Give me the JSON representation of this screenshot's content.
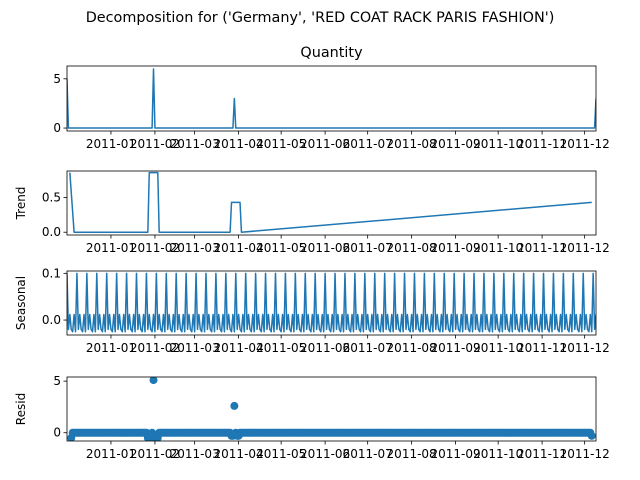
{
  "figure_title": "Decomposition for ('Germany', 'RED COAT RACK PARIS FASHION')",
  "line_color": "#1f77b4",
  "chart_data": [
    {
      "type": "line",
      "title": "Quantity",
      "ylabel": "",
      "xlim": [
        "2010-12-01",
        "2011-12-09"
      ],
      "ylim": [
        -0.3,
        6.3
      ],
      "yticks": [
        0,
        5
      ],
      "xtick_labels": [
        "2011-01",
        "2011-02",
        "2011-03",
        "2011-04",
        "2011-05",
        "2011-06",
        "2011-07",
        "2011-08",
        "2011-09",
        "2011-10",
        "2011-11",
        "2011-12"
      ],
      "x": [
        "2010-12-01",
        "2010-12-02",
        "2011-01-30",
        "2011-01-31",
        "2011-02-01",
        "2011-03-28",
        "2011-03-29",
        "2011-03-30",
        "2011-12-08",
        "2011-12-09"
      ],
      "y": [
        5,
        0,
        0,
        6,
        0,
        0,
        3,
        0,
        0,
        3
      ]
    },
    {
      "type": "line",
      "title": "",
      "ylabel": "Trend",
      "xlim": [
        "2010-12-01",
        "2011-12-09"
      ],
      "ylim": [
        -0.04,
        0.88
      ],
      "yticks": [
        0.0,
        0.5
      ],
      "xtick_labels": [
        "2011-01",
        "2011-02",
        "2011-03",
        "2011-04",
        "2011-05",
        "2011-06",
        "2011-07",
        "2011-08",
        "2011-09",
        "2011-10",
        "2011-11",
        "2011-12"
      ],
      "x": [
        "2010-12-03",
        "2010-12-06",
        "2011-01-27",
        "2011-01-28",
        "2011-02-03",
        "2011-02-04",
        "2011-03-26",
        "2011-03-27",
        "2011-04-02",
        "2011-04-03",
        "2011-12-06"
      ],
      "y": [
        0.857,
        0,
        0,
        0.857,
        0.857,
        0,
        0,
        0.429,
        0.429,
        0,
        0.429
      ]
    },
    {
      "type": "line",
      "title": "",
      "ylabel": "Seasonal",
      "xlim": [
        "2010-12-01",
        "2011-12-09"
      ],
      "ylim": [
        -0.032,
        0.105
      ],
      "yticks": [
        0.0,
        0.1
      ],
      "xtick_labels": [
        "2011-01",
        "2011-02",
        "2011-03",
        "2011-04",
        "2011-05",
        "2011-06",
        "2011-07",
        "2011-08",
        "2011-09",
        "2011-10",
        "2011-11",
        "2011-12"
      ],
      "period_days": 7,
      "start": "2010-12-01",
      "pattern": [
        0.1,
        -0.02,
        0.012,
        -0.02,
        -0.025,
        0.012,
        -0.025
      ]
    },
    {
      "type": "scatter",
      "title": "",
      "ylabel": "Resid",
      "xlim": [
        "2010-12-01",
        "2011-12-09"
      ],
      "ylim": [
        -0.8,
        5.4
      ],
      "yticks": [
        0,
        5
      ],
      "xtick_labels": [
        "2011-01",
        "2011-02",
        "2011-03",
        "2011-04",
        "2011-05",
        "2011-06",
        "2011-07",
        "2011-08",
        "2011-09",
        "2011-10",
        "2011-11",
        "2011-12"
      ],
      "x_start": "2010-12-04",
      "x_end": "2011-12-06",
      "baseline": 0,
      "outliers": [
        {
          "x": "2010-12-04",
          "y": -0.5
        },
        {
          "x": "2011-01-27",
          "y": -0.5
        },
        {
          "x": "2011-01-28",
          "y": -0.5
        },
        {
          "x": "2011-01-29",
          "y": -0.5
        },
        {
          "x": "2011-01-31",
          "y": 5.1
        },
        {
          "x": "2011-02-01",
          "y": -0.5
        },
        {
          "x": "2011-02-02",
          "y": -0.5
        },
        {
          "x": "2011-02-03",
          "y": -0.5
        },
        {
          "x": "2011-03-27",
          "y": -0.3
        },
        {
          "x": "2011-03-28",
          "y": -0.3
        },
        {
          "x": "2011-03-29",
          "y": 2.6
        },
        {
          "x": "2011-03-31",
          "y": -0.3
        },
        {
          "x": "2011-04-01",
          "y": -0.3
        },
        {
          "x": "2011-12-06",
          "y": -0.3
        }
      ]
    }
  ]
}
